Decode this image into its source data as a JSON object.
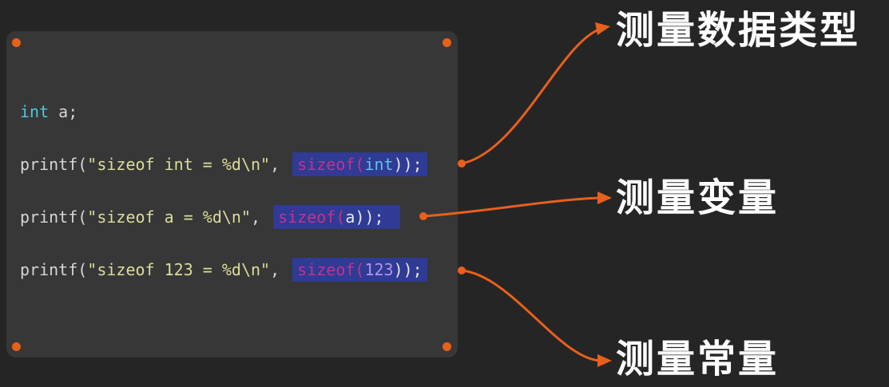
{
  "code": {
    "line1": {
      "type": "int",
      "rest": " a;"
    },
    "line2": {
      "prefix": "printf(",
      "string": "\"sizeof int = %d\\n\"",
      "sep": ", ",
      "op": "sizeof",
      "open": "(",
      "arg": "int",
      "close": "));"
    },
    "line3": {
      "prefix": "printf(",
      "string": "\"sizeof a = %d\\n\"",
      "sep": ", ",
      "op": "sizeof",
      "open": "(",
      "arg": "a",
      "close": "));"
    },
    "line4": {
      "prefix": "printf(",
      "string": "\"sizeof 123 = %d\\n\"",
      "sep": ", ",
      "op": "sizeof",
      "open": "(",
      "arg": "123",
      "close": "));"
    }
  },
  "labels": {
    "type": "测量数据类型",
    "variable": "测量变量",
    "constant": "测量常量"
  },
  "colors": {
    "background": "#252525",
    "panel": "#373737",
    "accent": "#e8601c",
    "highlight": "#2f3b94",
    "keyword": "#4ec9e0",
    "string": "#dcdc9a",
    "sizeof": "#c2328f"
  }
}
